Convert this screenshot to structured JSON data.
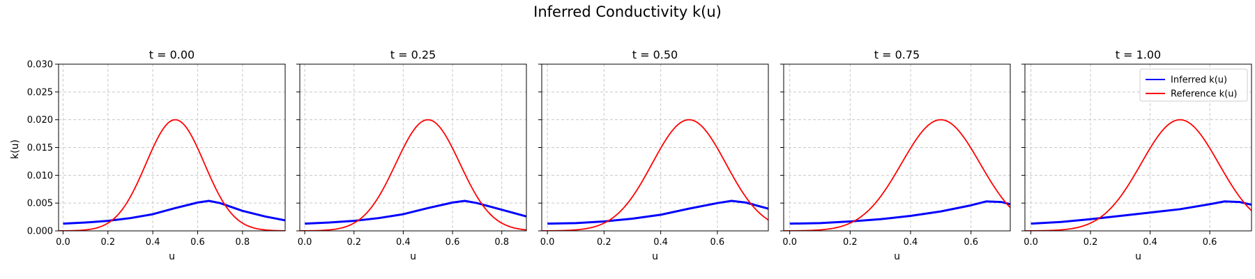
{
  "chart_data": {
    "type": "line",
    "title": "Inferred Conductivity k(u)",
    "ylabel": "k(u)",
    "xlabel": "u",
    "ylim": [
      0,
      0.03
    ],
    "yticks": [
      "0.000",
      "0.005",
      "0.010",
      "0.015",
      "0.020",
      "0.025",
      "0.030"
    ],
    "grid": true,
    "legend": {
      "placement": "top-right",
      "panel": 4,
      "entries": [
        "Inferred k(u)",
        "Reference k(u)"
      ]
    },
    "colors": {
      "inferred": "#0000ff",
      "reference": "#ff0000"
    },
    "reference_model": {
      "peak_u": 0.5,
      "peak_k": 0.02,
      "width": 0.13
    },
    "panels": [
      {
        "title": "t = 0.00",
        "xlim": [
          -0.02,
          0.99
        ],
        "xticks": [
          "0.0",
          "0.2",
          "0.4",
          "0.6",
          "0.8"
        ],
        "inferred": {
          "u": [
            0.0,
            0.1,
            0.2,
            0.3,
            0.4,
            0.5,
            0.6,
            0.65,
            0.7,
            0.8,
            0.9,
            0.99
          ],
          "k": [
            0.0013,
            0.0015,
            0.0018,
            0.0023,
            0.003,
            0.0041,
            0.0051,
            0.0054,
            0.005,
            0.0036,
            0.0026,
            0.0019
          ]
        }
      },
      {
        "title": "t = 0.25",
        "xlim": [
          -0.02,
          0.9
        ],
        "xticks": [
          "0.0",
          "0.2",
          "0.4",
          "0.6",
          "0.8"
        ],
        "inferred": {
          "u": [
            0.0,
            0.1,
            0.2,
            0.3,
            0.4,
            0.5,
            0.6,
            0.65,
            0.7,
            0.8,
            0.9
          ],
          "k": [
            0.0013,
            0.0015,
            0.0018,
            0.0023,
            0.003,
            0.0041,
            0.0051,
            0.0054,
            0.005,
            0.0038,
            0.0026
          ]
        }
      },
      {
        "title": "t = 0.50",
        "xlim": [
          -0.02,
          0.78
        ],
        "xticks": [
          "0.0",
          "0.2",
          "0.4",
          "0.6"
        ],
        "inferred": {
          "u": [
            0.0,
            0.1,
            0.2,
            0.3,
            0.4,
            0.5,
            0.6,
            0.65,
            0.7,
            0.78
          ],
          "k": [
            0.0013,
            0.0014,
            0.0017,
            0.0022,
            0.0029,
            0.004,
            0.005,
            0.0054,
            0.0051,
            0.004
          ]
        }
      },
      {
        "title": "t = 0.75",
        "xlim": [
          -0.02,
          0.73
        ],
        "xticks": [
          "0.0",
          "0.2",
          "0.4",
          "0.6"
        ],
        "inferred": {
          "u": [
            0.0,
            0.1,
            0.2,
            0.3,
            0.4,
            0.5,
            0.6,
            0.65,
            0.7,
            0.73
          ],
          "k": [
            0.0013,
            0.0014,
            0.0017,
            0.0021,
            0.0027,
            0.0035,
            0.0046,
            0.0053,
            0.0052,
            0.0048
          ]
        }
      },
      {
        "title": "t = 1.00",
        "xlim": [
          -0.02,
          0.74
        ],
        "xticks": [
          "0.0",
          "0.2",
          "0.4",
          "0.6"
        ],
        "inferred": {
          "u": [
            0.0,
            0.1,
            0.2,
            0.3,
            0.4,
            0.5,
            0.6,
            0.65,
            0.7,
            0.74
          ],
          "k": [
            0.0013,
            0.0016,
            0.0021,
            0.0027,
            0.0033,
            0.0039,
            0.0048,
            0.0053,
            0.0052,
            0.0047
          ]
        }
      }
    ]
  }
}
